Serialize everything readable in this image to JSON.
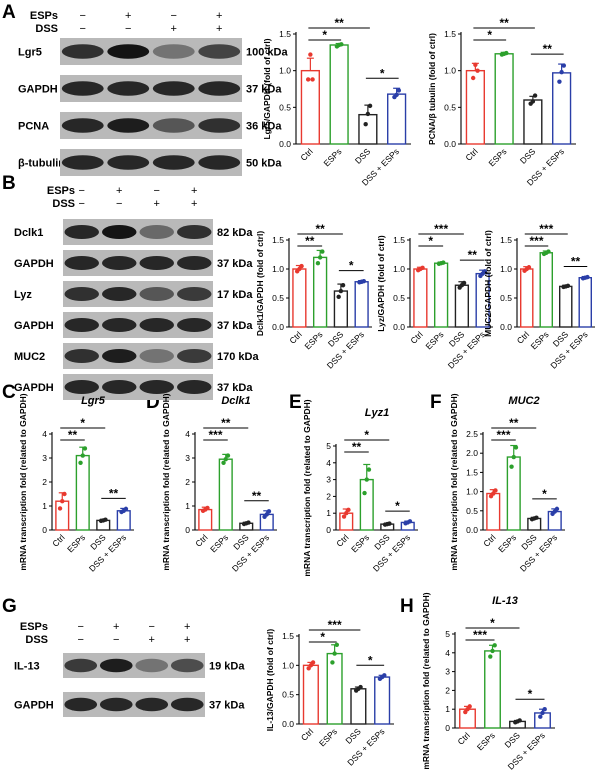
{
  "panels": {
    "A": {
      "label": "A",
      "conditions": [
        {
          "label": "ESPs",
          "signs": [
            "−",
            "+",
            "−",
            "+"
          ]
        },
        {
          "label": "DSS",
          "signs": [
            "−",
            "−",
            "+",
            "+"
          ]
        }
      ],
      "blots": [
        {
          "label": "Lgr5",
          "kda": "100 kDa",
          "intensity": [
            0.8,
            0.95,
            0.45,
            0.7
          ]
        },
        {
          "label": "GAPDH",
          "kda": "37 kDa",
          "intensity": [
            0.85,
            0.85,
            0.85,
            0.85
          ]
        },
        {
          "label": "PCNA",
          "kda": "36 kDa",
          "intensity": [
            0.85,
            0.9,
            0.6,
            0.8
          ]
        },
        {
          "label": "β-tubulin",
          "kda": "50 kDa",
          "intensity": [
            0.85,
            0.85,
            0.85,
            0.85
          ]
        }
      ]
    },
    "B": {
      "label": "B",
      "conditions": [
        {
          "label": "ESPs",
          "signs": [
            "−",
            "+",
            "−",
            "+"
          ]
        },
        {
          "label": "DSS",
          "signs": [
            "−",
            "−",
            "+",
            "+"
          ]
        }
      ],
      "blots": [
        {
          "label": "Dclk1",
          "kda": "82 kDa",
          "intensity": [
            0.85,
            0.95,
            0.5,
            0.8
          ]
        },
        {
          "label": "GAPDH",
          "kda": "37 kDa",
          "intensity": [
            0.85,
            0.85,
            0.85,
            0.85
          ]
        },
        {
          "label": "Lyz",
          "kda": "17 kDa",
          "intensity": [
            0.8,
            0.85,
            0.6,
            0.75
          ]
        },
        {
          "label": "GAPDH",
          "kda": "37 kDa",
          "intensity": [
            0.85,
            0.85,
            0.85,
            0.85
          ]
        },
        {
          "label": "MUC2",
          "kda": "170 kDa",
          "intensity": [
            0.8,
            0.9,
            0.45,
            0.75
          ]
        },
        {
          "label": "GAPDH",
          "kda": "37 kDa",
          "intensity": [
            0.85,
            0.85,
            0.85,
            0.85
          ]
        }
      ]
    },
    "C": {
      "label": "C"
    },
    "D": {
      "label": "D"
    },
    "E": {
      "label": "E"
    },
    "F": {
      "label": "F"
    },
    "G": {
      "label": "G",
      "conditions": [
        {
          "label": "ESPs",
          "signs": [
            "−",
            "+",
            "−",
            "+"
          ]
        },
        {
          "label": "DSS",
          "signs": [
            "−",
            "−",
            "+",
            "+"
          ]
        }
      ],
      "blots": [
        {
          "label": "IL-13",
          "kda": "19 kDa",
          "intensity": [
            0.75,
            0.9,
            0.45,
            0.65
          ]
        },
        {
          "label": "GAPDH",
          "kda": "37 kDa",
          "intensity": [
            0.85,
            0.85,
            0.85,
            0.85
          ]
        }
      ]
    },
    "H": {
      "label": "H"
    }
  },
  "colors": {
    "ctrl": "#e8392f",
    "esps": "#2ca02c",
    "dss": "#222222",
    "dss_esps": "#2a3ea8"
  },
  "chart_data": [
    {
      "id": "A1",
      "type": "bar",
      "categories": [
        "Ctrl",
        "ESPs",
        "DSS",
        "DSS + ESPs"
      ],
      "values": [
        1.0,
        1.35,
        0.4,
        0.68
      ],
      "errors": [
        0.17,
        0.02,
        0.13,
        0.08
      ],
      "points": [
        [
          0.88,
          1.22,
          0.88
        ],
        [
          1.33,
          1.35,
          1.36
        ],
        [
          0.27,
          0.41,
          0.52
        ],
        [
          0.64,
          0.67,
          0.73
        ]
      ],
      "ylabel": "Lgr5/GAPDH (fold of ctrl)",
      "ylim": [
        0,
        1.5
      ],
      "yticks": [
        0.0,
        0.5,
        1.0,
        1.5
      ],
      "sig": [
        {
          "from": 0,
          "to": 1,
          "text": "*"
        },
        {
          "from": 0,
          "to": 2,
          "text": "**"
        },
        {
          "from": 2,
          "to": 3,
          "text": "*"
        }
      ]
    },
    {
      "id": "A2",
      "type": "bar",
      "categories": [
        "Ctrl",
        "ESPs",
        "DSS",
        "DSS + ESPs"
      ],
      "values": [
        1.0,
        1.23,
        0.6,
        0.97
      ],
      "errors": [
        0.1,
        0.02,
        0.05,
        0.12
      ],
      "points": [
        [
          0.9,
          1.08,
          1.0
        ],
        [
          1.22,
          1.23,
          1.24
        ],
        [
          0.55,
          0.58,
          0.66
        ],
        [
          0.85,
          0.98,
          1.07
        ]
      ],
      "ylabel": "PCNA/β tubulin (fold of ctrl)",
      "ylim": [
        0,
        1.5
      ],
      "yticks": [
        0.0,
        0.5,
        1.0,
        1.5
      ],
      "sig": [
        {
          "from": 0,
          "to": 1,
          "text": "*"
        },
        {
          "from": 0,
          "to": 2,
          "text": "**"
        },
        {
          "from": 2,
          "to": 3,
          "text": "**"
        }
      ]
    },
    {
      "id": "B1",
      "type": "bar",
      "categories": [
        "Ctrl",
        "ESPs",
        "DSS",
        "DSS + ESPs"
      ],
      "values": [
        1.0,
        1.2,
        0.62,
        0.78
      ],
      "errors": [
        0.06,
        0.12,
        0.12,
        0.02
      ],
      "points": [
        [
          0.96,
          1.0,
          1.05
        ],
        [
          1.1,
          1.2,
          1.3
        ],
        [
          0.52,
          0.62,
          0.72
        ],
        [
          0.77,
          0.78,
          0.79
        ]
      ],
      "ylabel": "Dclk1/GAPDH (fold of ctrl)",
      "ylim": [
        0,
        1.5
      ],
      "yticks": [
        0.0,
        0.5,
        1.0,
        1.5
      ],
      "sig": [
        {
          "from": 0,
          "to": 1,
          "text": "**"
        },
        {
          "from": 0,
          "to": 2,
          "text": "**"
        },
        {
          "from": 2,
          "to": 3,
          "text": "*"
        }
      ]
    },
    {
      "id": "B2",
      "type": "bar",
      "categories": [
        "Ctrl",
        "ESPs",
        "DSS",
        "DSS + ESPs"
      ],
      "values": [
        1.0,
        1.1,
        0.72,
        0.92
      ],
      "errors": [
        0.03,
        0.02,
        0.06,
        0.06
      ],
      "points": [
        [
          0.98,
          1.0,
          1.02
        ],
        [
          1.09,
          1.1,
          1.11
        ],
        [
          0.68,
          0.72,
          0.76
        ],
        [
          0.88,
          0.92,
          0.96
        ]
      ],
      "ylabel": "Lyz/GAPDH (fold of ctrl)",
      "ylim": [
        0,
        1.5
      ],
      "yticks": [
        0.0,
        0.5,
        1.0,
        1.5
      ],
      "sig": [
        {
          "from": 0,
          "to": 1,
          "text": "*"
        },
        {
          "from": 0,
          "to": 2,
          "text": "***"
        },
        {
          "from": 2,
          "to": 3,
          "text": "**"
        }
      ]
    },
    {
      "id": "B3",
      "type": "bar",
      "categories": [
        "Ctrl",
        "ESPs",
        "DSS",
        "DSS + ESPs"
      ],
      "values": [
        1.0,
        1.28,
        0.7,
        0.85
      ],
      "errors": [
        0.04,
        0.03,
        0.02,
        0.02
      ],
      "points": [
        [
          0.97,
          1.0,
          1.03
        ],
        [
          1.26,
          1.28,
          1.3
        ],
        [
          0.69,
          0.7,
          0.71
        ],
        [
          0.84,
          0.85,
          0.86
        ]
      ],
      "ylabel": "MUC2/GAPDH (fold of ctrl)",
      "ylim": [
        0,
        1.5
      ],
      "yticks": [
        0.0,
        0.5,
        1.0,
        1.5
      ],
      "sig": [
        {
          "from": 0,
          "to": 1,
          "text": "***"
        },
        {
          "from": 0,
          "to": 2,
          "text": "***"
        },
        {
          "from": 2,
          "to": 3,
          "text": "**"
        }
      ]
    },
    {
      "id": "C",
      "type": "bar",
      "title": "Lgr5",
      "categories": [
        "Ctrl",
        "ESPs",
        "DSS",
        "DSS + ESPs"
      ],
      "values": [
        1.2,
        3.1,
        0.4,
        0.8
      ],
      "errors": [
        0.35,
        0.35,
        0.04,
        0.1
      ],
      "points": [
        [
          0.9,
          1.2,
          1.5
        ],
        [
          2.8,
          3.1,
          3.4
        ],
        [
          0.38,
          0.4,
          0.43
        ],
        [
          0.75,
          0.8,
          0.88
        ]
      ],
      "ylabel": "mRNA transcription fold (related to GAPDH)",
      "ylim": [
        0,
        4
      ],
      "yticks": [
        0,
        1,
        2,
        3,
        4
      ],
      "sig": [
        {
          "from": 0,
          "to": 1,
          "text": "**"
        },
        {
          "from": 0,
          "to": 2,
          "text": "*"
        },
        {
          "from": 2,
          "to": 3,
          "text": "**"
        }
      ]
    },
    {
      "id": "D",
      "type": "bar",
      "title": "Dclk1",
      "categories": [
        "Ctrl",
        "ESPs",
        "DSS",
        "DSS + ESPs"
      ],
      "values": [
        0.85,
        2.95,
        0.28,
        0.65
      ],
      "errors": [
        0.1,
        0.2,
        0.04,
        0.15
      ],
      "points": [
        [
          0.8,
          0.85,
          0.92
        ],
        [
          2.8,
          2.95,
          3.1
        ],
        [
          0.25,
          0.28,
          0.31
        ],
        [
          0.55,
          0.65,
          0.78
        ]
      ],
      "ylabel": "mRNA transcription fold (related to GAPDH)",
      "ylim": [
        0,
        4
      ],
      "yticks": [
        0,
        1,
        2,
        3,
        4
      ],
      "sig": [
        {
          "from": 0,
          "to": 1,
          "text": "***"
        },
        {
          "from": 0,
          "to": 2,
          "text": "**"
        },
        {
          "from": 2,
          "to": 3,
          "text": "**"
        }
      ]
    },
    {
      "id": "E",
      "type": "bar",
      "title": "Lyz1",
      "categories": [
        "Ctrl",
        "ESPs",
        "DSS",
        "DSS + ESPs"
      ],
      "values": [
        1.0,
        3.0,
        0.35,
        0.45
      ],
      "errors": [
        0.25,
        0.9,
        0.04,
        0.08
      ],
      "points": [
        [
          0.8,
          1.0,
          1.2
        ],
        [
          2.2,
          3.0,
          3.6
        ],
        [
          0.32,
          0.35,
          0.38
        ],
        [
          0.4,
          0.45,
          0.52
        ]
      ],
      "ylabel": "mRNA transcription fold (related to GAPDH)",
      "ylim": [
        0,
        5
      ],
      "yticks": [
        0,
        1,
        2,
        3,
        4,
        5
      ],
      "sig": [
        {
          "from": 0,
          "to": 1,
          "text": "**"
        },
        {
          "from": 0,
          "to": 2,
          "text": "*"
        },
        {
          "from": 2,
          "to": 3,
          "text": "*"
        }
      ]
    },
    {
      "id": "F",
      "type": "bar",
      "title": "MUC2",
      "categories": [
        "Ctrl",
        "ESPs",
        "DSS",
        "DSS + ESPs"
      ],
      "values": [
        0.95,
        1.9,
        0.3,
        0.48
      ],
      "errors": [
        0.1,
        0.3,
        0.03,
        0.07
      ],
      "points": [
        [
          0.88,
          0.95,
          1.03
        ],
        [
          1.65,
          1.9,
          2.15
        ],
        [
          0.28,
          0.3,
          0.32
        ],
        [
          0.42,
          0.48,
          0.55
        ]
      ],
      "ylabel": "mRNA transcription fold (related to GAPDH)",
      "ylim": [
        0,
        2.5
      ],
      "yticks": [
        0.0,
        0.5,
        1.0,
        1.5,
        2.0,
        2.5
      ],
      "sig": [
        {
          "from": 0,
          "to": 1,
          "text": "***"
        },
        {
          "from": 0,
          "to": 2,
          "text": "**"
        },
        {
          "from": 2,
          "to": 3,
          "text": "*"
        }
      ]
    },
    {
      "id": "G",
      "type": "bar",
      "categories": [
        "Ctrl",
        "ESPs",
        "DSS",
        "DSS + ESPs"
      ],
      "values": [
        1.0,
        1.2,
        0.6,
        0.8
      ],
      "errors": [
        0.05,
        0.15,
        0.03,
        0.03
      ],
      "points": [
        [
          0.95,
          1.0,
          1.05
        ],
        [
          1.05,
          1.2,
          1.35
        ],
        [
          0.57,
          0.6,
          0.63
        ],
        [
          0.77,
          0.8,
          0.83
        ]
      ],
      "ylabel": "IL-13/GAPDH (fold of ctrl)",
      "ylim": [
        0,
        1.5
      ],
      "yticks": [
        0.0,
        0.5,
        1.0,
        1.5
      ],
      "sig": [
        {
          "from": 0,
          "to": 1,
          "text": "*"
        },
        {
          "from": 0,
          "to": 2,
          "text": "***"
        },
        {
          "from": 2,
          "to": 3,
          "text": "*"
        }
      ]
    },
    {
      "id": "H",
      "type": "bar",
      "title": "IL-13",
      "categories": [
        "Ctrl",
        "ESPs",
        "DSS",
        "DSS + ESPs"
      ],
      "values": [
        1.0,
        4.1,
        0.35,
        0.8
      ],
      "errors": [
        0.15,
        0.3,
        0.05,
        0.2
      ],
      "points": [
        [
          0.85,
          1.0,
          1.15
        ],
        [
          3.8,
          4.1,
          4.4
        ],
        [
          0.3,
          0.35,
          0.4
        ],
        [
          0.6,
          0.8,
          1.0
        ]
      ],
      "ylabel": "mRNA transcription fold (related to GAPDH)",
      "ylim": [
        0,
        5
      ],
      "yticks": [
        0,
        1,
        2,
        3,
        4,
        5
      ],
      "sig": [
        {
          "from": 0,
          "to": 1,
          "text": "***"
        },
        {
          "from": 0,
          "to": 2,
          "text": "*"
        },
        {
          "from": 2,
          "to": 3,
          "text": "*"
        }
      ]
    }
  ]
}
